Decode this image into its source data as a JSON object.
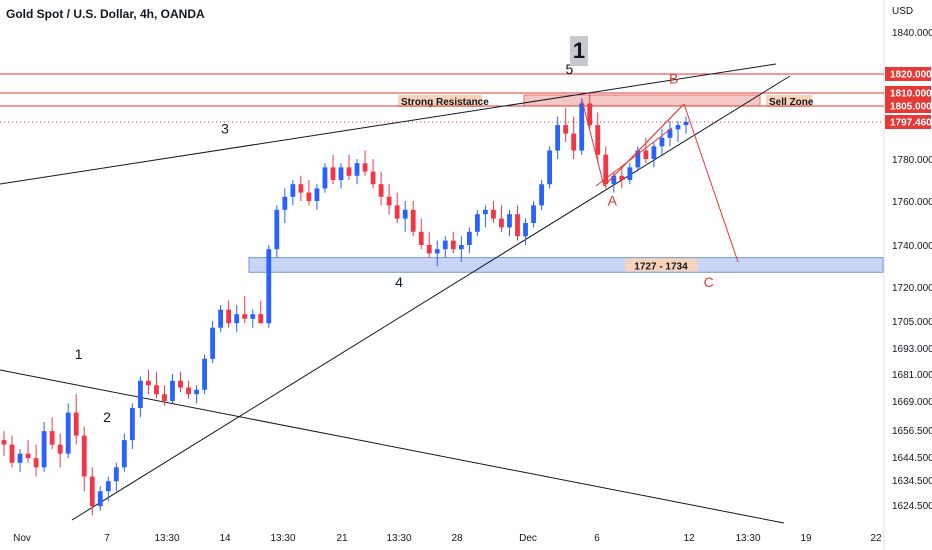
{
  "chart_data": {
    "type": "candlestick",
    "title": "Gold Spot / U.S. Dollar, 4h, OANDA",
    "currency": "USD",
    "y_axis": {
      "ticks": [
        {
          "value": 1840,
          "label": "1840.000"
        },
        {
          "value": 1780,
          "label": "1780.000"
        },
        {
          "value": 1760,
          "label": "1760.000"
        },
        {
          "value": 1740,
          "label": "1740.000"
        },
        {
          "value": 1720,
          "label": "1720.000"
        },
        {
          "value": 1705,
          "label": "1705.000"
        },
        {
          "value": 1693,
          "label": "1693.000"
        },
        {
          "value": 1681,
          "label": "1681.000"
        },
        {
          "value": 1669,
          "label": "1669.000"
        },
        {
          "value": 1656.5,
          "label": "1656.500"
        },
        {
          "value": 1644.5,
          "label": "1644.500"
        },
        {
          "value": 1634.5,
          "label": "1634.500"
        },
        {
          "value": 1624.5,
          "label": "1624.500"
        }
      ]
    },
    "x_axis": {
      "ticks": [
        {
          "label": "Nov",
          "value": "2021-11-01"
        },
        {
          "label": "7",
          "value": "2021-11-07"
        },
        {
          "label": "13:30",
          "value": "2021-11-10"
        },
        {
          "label": "14",
          "value": "2021-11-14"
        },
        {
          "label": "13:30",
          "value": "2021-11-17"
        },
        {
          "label": "21",
          "value": "2021-11-21"
        },
        {
          "label": "13:30",
          "value": "2021-11-24"
        },
        {
          "label": "28",
          "value": "2021-11-28"
        },
        {
          "label": "Dec",
          "value": "2021-12-01"
        },
        {
          "label": "6",
          "value": "2021-12-06"
        },
        {
          "label": "12",
          "value": "2021-12-12"
        },
        {
          "label": "13:30",
          "value": "2021-12-15"
        },
        {
          "label": "19",
          "value": "2021-12-19"
        },
        {
          "label": "22",
          "value": "2021-12-22"
        }
      ]
    },
    "price_badges": [
      {
        "label": "1820.000",
        "value": 1820,
        "color": "#e53935"
      },
      {
        "label": "1810.000",
        "value": 1810,
        "color": "#e53935"
      },
      {
        "label": "1805.000",
        "value": 1805,
        "color": "#e53935"
      },
      {
        "label": "1797.460",
        "value": 1797.46,
        "color": "#e53935"
      }
    ],
    "horizontal_lines": [
      {
        "value": 1820,
        "color": "#e53935"
      },
      {
        "value": 1810,
        "color": "#e53935"
      },
      {
        "value": 1805,
        "color": "#e53935"
      },
      {
        "value": 1797.46,
        "color": "#e53935",
        "dotted": true
      }
    ],
    "zones": [
      {
        "name": "Strong Resistance",
        "label_side": "left",
        "low": 1805,
        "high": 1810,
        "color": "#f4c7c7"
      },
      {
        "name": "Sell Zone",
        "label_side": "right",
        "low": 1805,
        "high": 1810,
        "color": "#f4c7c7"
      },
      {
        "name": "1727 - 1734",
        "low": 1727,
        "high": 1734,
        "color": "#c8d5f5"
      }
    ],
    "wave_labels": [
      {
        "text": "1",
        "color": "#131722",
        "date": "2021-11-05",
        "price": 1688
      },
      {
        "text": "2",
        "color": "#131722",
        "date": "2021-11-07",
        "price": 1660
      },
      {
        "text": "3",
        "color": "#131722",
        "date": "2021-11-14",
        "price": 1792
      },
      {
        "text": "4",
        "color": "#131722",
        "date": "2021-11-24",
        "price": 1720
      },
      {
        "text": "5",
        "color": "#131722",
        "date": "2021-12-04",
        "price": 1820
      },
      {
        "text": "A",
        "color": "#e53935",
        "date": "2021-12-07",
        "price": 1758
      },
      {
        "text": "B",
        "color": "#e53935",
        "date": "2021-12-11",
        "price": 1815
      },
      {
        "text": "C",
        "color": "#e53935",
        "date": "2021-12-13",
        "price": 1720
      }
    ],
    "big_label": "1",
    "candles": [
      [
        1652,
        1656,
        1645,
        1650
      ],
      [
        1650,
        1654,
        1640,
        1642
      ],
      [
        1642,
        1648,
        1638,
        1646
      ],
      [
        1646,
        1652,
        1642,
        1644
      ],
      [
        1644,
        1650,
        1636,
        1640
      ],
      [
        1640,
        1660,
        1638,
        1656
      ],
      [
        1656,
        1662,
        1648,
        1650
      ],
      [
        1650,
        1655,
        1640,
        1646
      ],
      [
        1646,
        1668,
        1644,
        1664
      ],
      [
        1664,
        1672,
        1650,
        1654
      ],
      [
        1654,
        1658,
        1630,
        1636
      ],
      [
        1636,
        1640,
        1620,
        1624
      ],
      [
        1624,
        1632,
        1622,
        1630
      ],
      [
        1630,
        1636,
        1626,
        1634
      ],
      [
        1634,
        1642,
        1630,
        1640
      ],
      [
        1640,
        1655,
        1638,
        1652
      ],
      [
        1652,
        1668,
        1648,
        1666
      ],
      [
        1666,
        1680,
        1662,
        1678
      ],
      [
        1678,
        1683,
        1672,
        1676
      ],
      [
        1676,
        1682,
        1670,
        1672
      ],
      [
        1672,
        1676,
        1667,
        1669
      ],
      [
        1669,
        1681,
        1668,
        1678
      ],
      [
        1678,
        1682,
        1673,
        1675
      ],
      [
        1675,
        1678,
        1670,
        1672
      ],
      [
        1672,
        1676,
        1668,
        1674
      ],
      [
        1674,
        1690,
        1672,
        1688
      ],
      [
        1688,
        1705,
        1686,
        1702
      ],
      [
        1702,
        1712,
        1700,
        1710
      ],
      [
        1710,
        1714,
        1702,
        1704
      ],
      [
        1704,
        1712,
        1700,
        1708
      ],
      [
        1708,
        1716,
        1704,
        1706
      ],
      [
        1706,
        1710,
        1702,
        1708
      ],
      [
        1708,
        1714,
        1704,
        1704
      ],
      [
        1704,
        1740,
        1702,
        1738
      ],
      [
        1738,
        1758,
        1734,
        1756
      ],
      [
        1756,
        1766,
        1750,
        1762
      ],
      [
        1762,
        1770,
        1758,
        1768
      ],
      [
        1768,
        1772,
        1760,
        1764
      ],
      [
        1764,
        1770,
        1758,
        1760
      ],
      [
        1760,
        1768,
        1756,
        1766
      ],
      [
        1766,
        1778,
        1764,
        1776
      ],
      [
        1776,
        1782,
        1768,
        1770
      ],
      [
        1770,
        1778,
        1766,
        1776
      ],
      [
        1776,
        1782,
        1770,
        1772
      ],
      [
        1772,
        1780,
        1768,
        1778
      ],
      [
        1778,
        1784,
        1772,
        1774
      ],
      [
        1774,
        1780,
        1766,
        1768
      ],
      [
        1768,
        1774,
        1758,
        1762
      ],
      [
        1762,
        1768,
        1754,
        1758
      ],
      [
        1758,
        1764,
        1750,
        1752
      ],
      [
        1752,
        1760,
        1746,
        1756
      ],
      [
        1756,
        1760,
        1744,
        1746
      ],
      [
        1746,
        1752,
        1738,
        1740
      ],
      [
        1740,
        1746,
        1734,
        1736
      ],
      [
        1736,
        1742,
        1730,
        1738
      ],
      [
        1738,
        1744,
        1734,
        1742
      ],
      [
        1742,
        1746,
        1736,
        1738
      ],
      [
        1738,
        1744,
        1732,
        1740
      ],
      [
        1740,
        1748,
        1736,
        1746
      ],
      [
        1746,
        1756,
        1744,
        1754
      ],
      [
        1754,
        1758,
        1748,
        1756
      ],
      [
        1756,
        1760,
        1750,
        1752
      ],
      [
        1752,
        1758,
        1746,
        1748
      ],
      [
        1748,
        1756,
        1744,
        1754
      ],
      [
        1754,
        1758,
        1742,
        1744
      ],
      [
        1744,
        1752,
        1740,
        1750
      ],
      [
        1750,
        1760,
        1748,
        1758
      ],
      [
        1758,
        1770,
        1756,
        1768
      ],
      [
        1768,
        1786,
        1766,
        1784
      ],
      [
        1784,
        1800,
        1780,
        1796
      ],
      [
        1796,
        1804,
        1788,
        1792
      ],
      [
        1792,
        1800,
        1780,
        1784
      ],
      [
        1784,
        1808,
        1782,
        1806
      ],
      [
        1806,
        1810,
        1794,
        1796
      ],
      [
        1796,
        1802,
        1778,
        1782
      ],
      [
        1782,
        1786,
        1766,
        1768
      ],
      [
        1768,
        1774,
        1764,
        1772
      ],
      [
        1772,
        1776,
        1766,
        1770
      ],
      [
        1770,
        1778,
        1768,
        1776
      ],
      [
        1776,
        1786,
        1774,
        1784
      ],
      [
        1784,
        1790,
        1778,
        1780
      ],
      [
        1780,
        1788,
        1776,
        1786
      ],
      [
        1786,
        1794,
        1782,
        1790
      ],
      [
        1790,
        1798,
        1786,
        1794
      ],
      [
        1794,
        1798,
        1788,
        1796
      ],
      [
        1796,
        1800,
        1792,
        1797.46
      ]
    ]
  }
}
